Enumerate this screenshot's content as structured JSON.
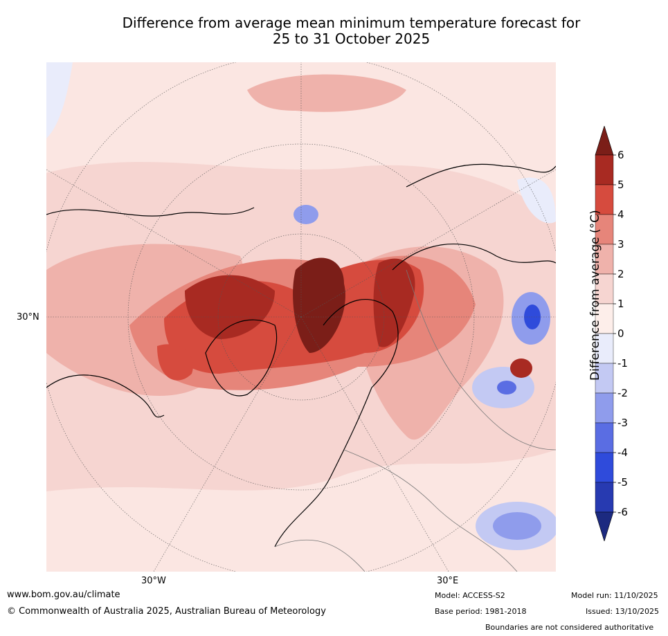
{
  "title": {
    "line1": "Difference from average mean minimum temperature forecast for",
    "line2": "25 to 31 October 2025"
  },
  "map": {
    "projection": "polar stereographic (Northern Hemisphere)",
    "axis_labels": {
      "left": "30°N",
      "bottom_left": "30°W",
      "bottom_right": "30°E"
    }
  },
  "colorbar": {
    "label": "Difference from average (°C)",
    "ticks": [
      "6",
      "5",
      "4",
      "3",
      "2",
      "1",
      "0",
      "-1",
      "-2",
      "-3",
      "-4",
      "-5",
      "-6"
    ],
    "colors": [
      "#7b1e18",
      "#a82a22",
      "#d64b3e",
      "#e6857a",
      "#efb2ab",
      "#f6d5d1",
      "#fdeeea",
      "#e9ecfb",
      "#c3c9f3",
      "#8f9cec",
      "#5a6de3",
      "#2f4bdb",
      "#273ab1",
      "#1c2a80"
    ]
  },
  "footer": {
    "website": "www.bom.gov.au/climate",
    "copyright": "© Commonwealth of Australia 2025, Australian Bureau of Meteorology",
    "model": "Model: ACCESS-S2",
    "base_period": "Base period: 1981-2018",
    "model_run": "Model run: 11/10/2025",
    "issued": "Issued: 13/10/2025",
    "disclaimer": "Boundaries are not considered authoritative"
  }
}
